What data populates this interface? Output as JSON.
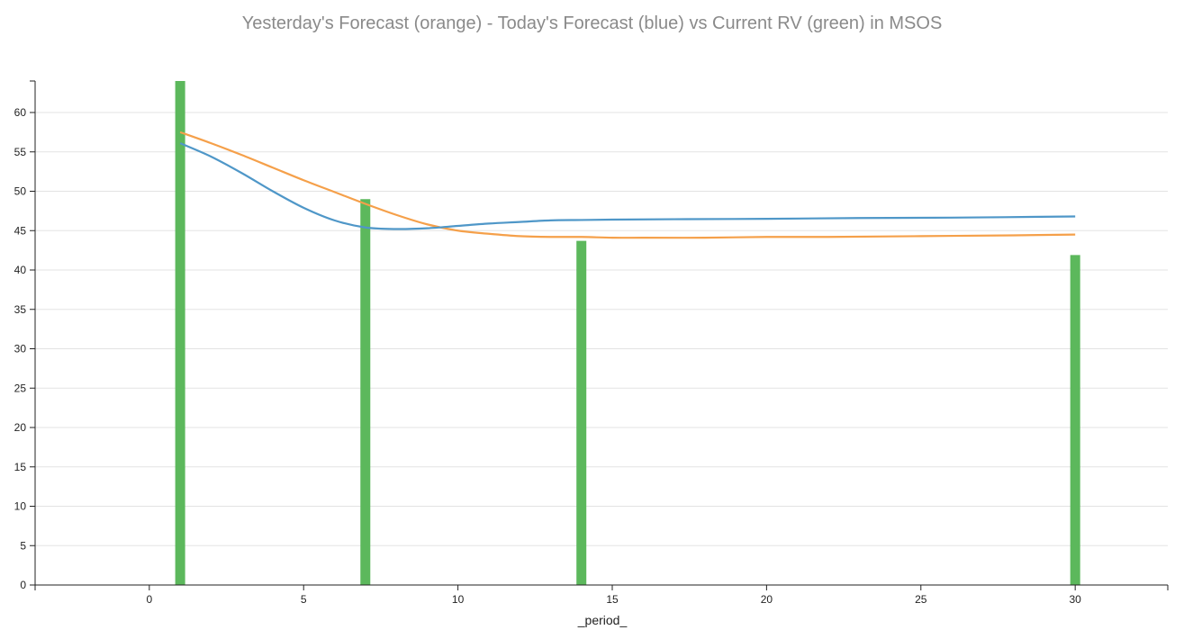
{
  "chart_data": {
    "type": "bar",
    "title": "Yesterday's Forecast (orange) - Today's Forecast (blue) vs Current RV (green) in MSOS",
    "xlabel": "_period_",
    "ylabel": "",
    "xlim": [
      -3.7,
      33
    ],
    "ylim": [
      0,
      64
    ],
    "x_ticks": [
      0,
      5,
      10,
      15,
      20,
      25,
      30
    ],
    "y_ticks": [
      0,
      5,
      10,
      15,
      20,
      25,
      30,
      35,
      40,
      45,
      50,
      55,
      60
    ],
    "grid": "horizontal",
    "bars": {
      "color": "#5cb85c",
      "x": [
        1,
        7,
        14,
        30
      ],
      "values": [
        64,
        49,
        43.7,
        41.9
      ]
    },
    "series": [
      {
        "color": "#f5a04a",
        "x": [
          1,
          2,
          3,
          4,
          5,
          6,
          7,
          8,
          9,
          10,
          11,
          12,
          13,
          14,
          15,
          16,
          18,
          20,
          22,
          25,
          28,
          30
        ],
        "values": [
          57.5,
          56.1,
          54.6,
          53.0,
          51.4,
          49.9,
          48.4,
          47.0,
          45.8,
          45.0,
          44.6,
          44.3,
          44.2,
          44.2,
          44.1,
          44.1,
          44.1,
          44.2,
          44.2,
          44.3,
          44.4,
          44.5
        ]
      },
      {
        "color": "#4f97c8",
        "x": [
          1,
          2,
          3,
          4,
          5,
          6,
          7,
          8,
          9,
          10,
          11,
          12,
          13,
          14,
          15,
          17,
          20,
          23,
          26,
          30
        ],
        "values": [
          56.1,
          54.4,
          52.3,
          50.0,
          47.9,
          46.3,
          45.4,
          45.2,
          45.3,
          45.6,
          45.9,
          46.1,
          46.3,
          46.35,
          46.4,
          46.45,
          46.5,
          46.6,
          46.65,
          46.8
        ]
      }
    ]
  }
}
